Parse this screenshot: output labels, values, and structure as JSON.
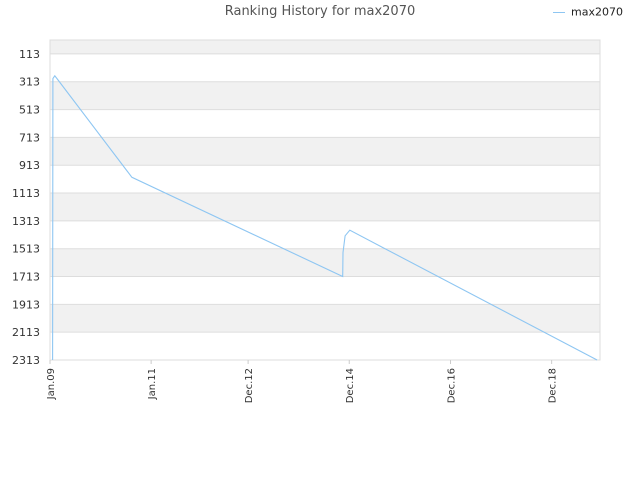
{
  "chart_data": {
    "type": "line",
    "title": "Ranking History for max2070",
    "xlabel": "",
    "ylabel": "",
    "y_inverted": true,
    "ylim": [
      2313,
      13
    ],
    "yticks": [
      113,
      313,
      513,
      713,
      913,
      1113,
      1313,
      1513,
      1713,
      1913,
      2113,
      2313
    ],
    "xlim": [
      "2009-01-01",
      "2019-11-15"
    ],
    "xticks": [
      {
        "date": "2009-01-01",
        "label": "Jan.09"
      },
      {
        "date": "2011-01-01",
        "label": "Jan.11"
      },
      {
        "date": "2012-12-01",
        "label": "Dec.12"
      },
      {
        "date": "2014-12-01",
        "label": "Dec.14"
      },
      {
        "date": "2016-12-01",
        "label": "Dec.16"
      },
      {
        "date": "2018-12-01",
        "label": "Dec.18"
      }
    ],
    "legend_position": "top-right",
    "grid": true,
    "series": [
      {
        "name": "max2070",
        "color": "#8ec6f2",
        "points": [
          {
            "x": "2009-01-20",
            "y": 2313
          },
          {
            "x": "2009-01-22",
            "y": 290
          },
          {
            "x": "2009-02-05",
            "y": 270
          },
          {
            "x": "2009-02-20",
            "y": 290
          },
          {
            "x": "2010-08-15",
            "y": 1000
          },
          {
            "x": "2014-10-15",
            "y": 1713
          },
          {
            "x": "2014-10-17",
            "y": 1540
          },
          {
            "x": "2014-11-01",
            "y": 1420
          },
          {
            "x": "2014-12-05",
            "y": 1380
          },
          {
            "x": "2019-10-25",
            "y": 2313
          }
        ]
      }
    ]
  }
}
